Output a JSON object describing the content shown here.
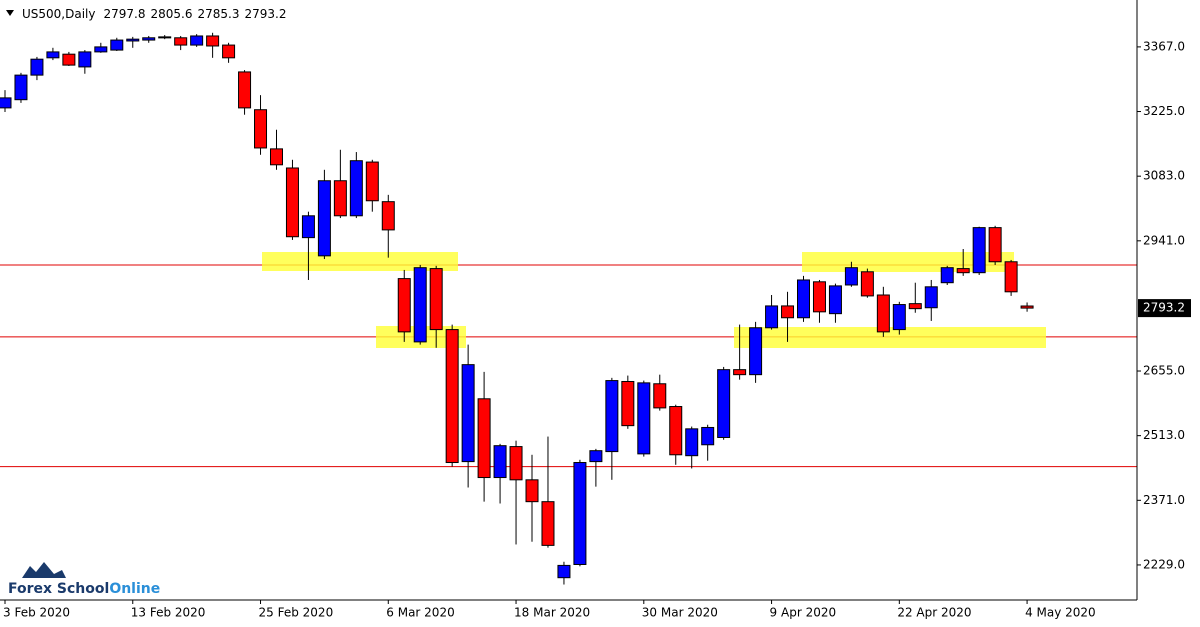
{
  "chart_data": {
    "type": "candlestick",
    "title": "US500,Daily",
    "categories": [
      "3 Feb 2020",
      null,
      null,
      null,
      null,
      null,
      null,
      null,
      "13 Feb 2020",
      null,
      null,
      null,
      null,
      null,
      null,
      null,
      "25 Feb 2020",
      null,
      null,
      null,
      null,
      null,
      null,
      null,
      "6 Mar 2020",
      null,
      null,
      null,
      null,
      null,
      null,
      null,
      "18 Mar 2020",
      null,
      null,
      null,
      null,
      null,
      null,
      null,
      "30 Mar 2020",
      null,
      null,
      null,
      null,
      null,
      null,
      null,
      "9 Apr 2020",
      null,
      null,
      null,
      null,
      null,
      null,
      null,
      "22 Apr 2020",
      null,
      null,
      null,
      null,
      null,
      null,
      null,
      "4 May 2020"
    ],
    "open": [
      3233,
      3251,
      3305,
      3343,
      3351,
      3323,
      3356,
      3360,
      3380,
      3382,
      3387,
      3387,
      3371,
      3391,
      3371,
      3312,
      3229,
      3143,
      3101,
      2948,
      2908,
      3073,
      2996,
      3114,
      3027,
      2858,
      2719,
      2880,
      2746,
      2456,
      2594,
      2421,
      2489,
      2416,
      2368,
      2201,
      2230,
      2456,
      2478,
      2632,
      2473,
      2627,
      2577,
      2469,
      2493,
      2509,
      2658,
      2647,
      2750,
      2798,
      2772,
      2851,
      2781,
      2844,
      2873,
      2822,
      2746,
      2803,
      2794,
      2849,
      2880,
      2871,
      2970,
      2895,
      2797.8
    ],
    "high": [
      3272,
      3310,
      3345,
      3365,
      3356,
      3360,
      3376,
      3387,
      3389,
      3391,
      3393,
      3391,
      3395,
      3398,
      3376,
      3316,
      3261,
      3185,
      3119,
      3005,
      3097,
      3141,
      3136,
      3119,
      3042,
      2877,
      2888,
      2886,
      2757,
      2713,
      2653,
      2495,
      2502,
      2471,
      2511,
      2236,
      2460,
      2484,
      2640,
      2645,
      2634,
      2647,
      2581,
      2533,
      2537,
      2664,
      2757,
      2763,
      2822,
      2829,
      2864,
      2855,
      2847,
      2895,
      2880,
      2840,
      2807,
      2849,
      2855,
      2886,
      2923,
      2972,
      2974,
      2899,
      2805.6
    ],
    "low": [
      3224,
      3244,
      3294,
      3338,
      3325,
      3308,
      3354,
      3358,
      3365,
      3376,
      3384,
      3360,
      3367,
      3343,
      3332,
      3218,
      3130,
      3097,
      2943,
      2855,
      2901,
      2991,
      2991,
      3005,
      2904,
      2719,
      2713,
      2706,
      2445,
      2399,
      2368,
      2364,
      2274,
      2280,
      2267,
      2186,
      2226,
      2401,
      2416,
      2528,
      2467,
      2568,
      2449,
      2441,
      2458,
      2504,
      2636,
      2629,
      2746,
      2719,
      2763,
      2761,
      2761,
      2840,
      2816,
      2730,
      2735,
      2783,
      2765,
      2844,
      2864,
      2866,
      2888,
      2820,
      2785.3
    ],
    "close": [
      3255,
      3305,
      3340,
      3356,
      3327,
      3356,
      3367,
      3382,
      3384,
      3387,
      3389,
      3371,
      3391,
      3369,
      3343,
      3233,
      3145,
      3108,
      2950,
      2996,
      3073,
      2996,
      3117,
      3029,
      2965,
      2741,
      2882,
      2746,
      2454,
      2669,
      2421,
      2491,
      2416,
      2368,
      2272,
      2228,
      2454,
      2480,
      2634,
      2535,
      2629,
      2574,
      2471,
      2528,
      2531,
      2658,
      2647,
      2750,
      2798,
      2772,
      2855,
      2785,
      2842,
      2882,
      2820,
      2741,
      2801,
      2792,
      2840,
      2882,
      2871,
      2970,
      2895,
      2829,
      2793.2
    ],
    "up_color": "#0000ff",
    "down_color": "#ff0000",
    "hlines": [
      2888,
      2730,
      2445
    ],
    "hline_color": "#e00000",
    "ylim": [
      2152,
      3470
    ],
    "yticks": [
      {
        "value": 2229,
        "label": "2229.0"
      },
      {
        "value": 2371,
        "label": "2371.0"
      },
      {
        "value": 2513,
        "label": "2513.0"
      },
      {
        "value": 2655,
        "label": "2655.0"
      },
      {
        "value": 2941,
        "label": "2941.0"
      },
      {
        "value": 3083,
        "label": "3083.0"
      },
      {
        "value": 3225,
        "label": "3225.0"
      },
      {
        "value": 3367,
        "label": "3367.0"
      }
    ],
    "watermark": [
      "Forex School",
      "Online"
    ]
  }
}
